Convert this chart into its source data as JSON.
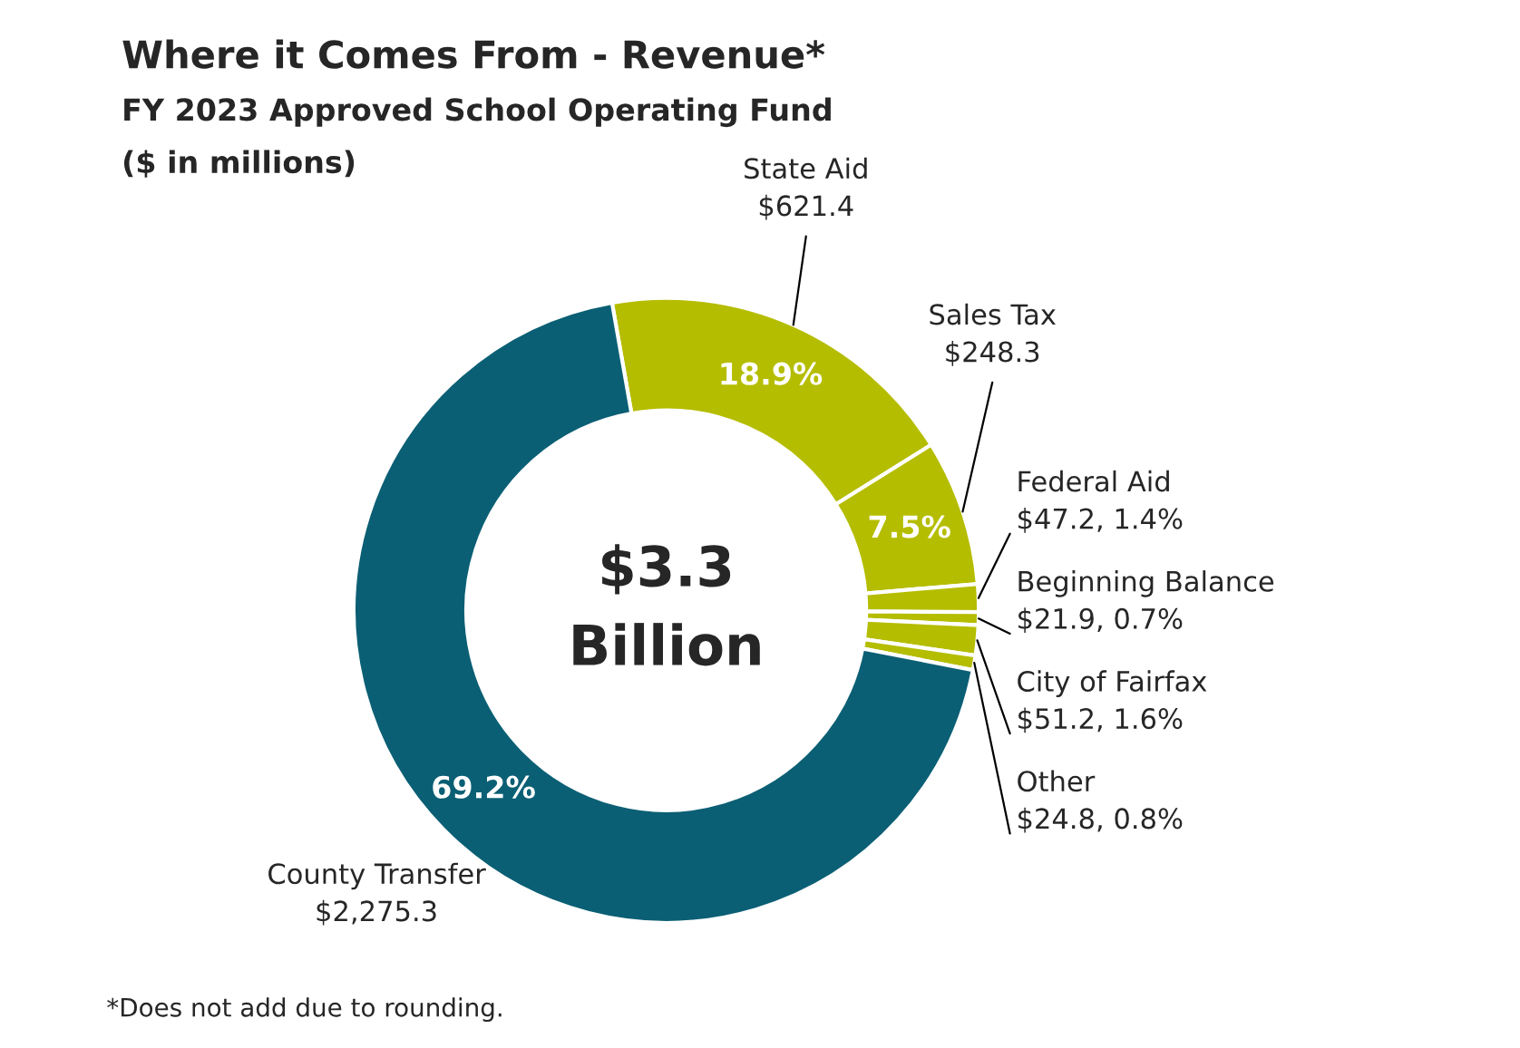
{
  "chart_data": {
    "type": "donut",
    "title": "Where it Comes From - Revenue*",
    "subtitle": "FY 2023 Approved School Operating Fund",
    "categories": [
      "State Aid",
      "Sales Tax",
      "Federal Aid",
      "Beginning Balance",
      "City of Fairfax",
      "Other",
      "County Transfer"
    ],
    "values": [
      621.4,
      248.3,
      47.2,
      21.9,
      51.2,
      24.8,
      2275.3
    ],
    "colors": [
      "#b5bd00",
      "#b5bd00",
      "#b5bd00",
      "#b5bd00",
      "#b5bd00",
      "#b5bd00",
      "#0b5f74"
    ],
    "value_labels": [
      "$621.4",
      "$248.3",
      "$47.2, 1.4%",
      "$21.9, 0.7%",
      "$51.2, 1.6%",
      "$24.8, 0.8%",
      "$2,275.3"
    ],
    "legend": false,
    "annotations": [
      "($ in millions)",
      "$3.3\nBillion",
      "*Does not add due to rounding.",
      {
        "text": "18.9%",
        "x": "State Aid"
      },
      {
        "text": "7.5%",
        "x": "Sales Tax"
      },
      {
        "text": "69.2%",
        "x": "County Transfer"
      }
    ]
  }
}
